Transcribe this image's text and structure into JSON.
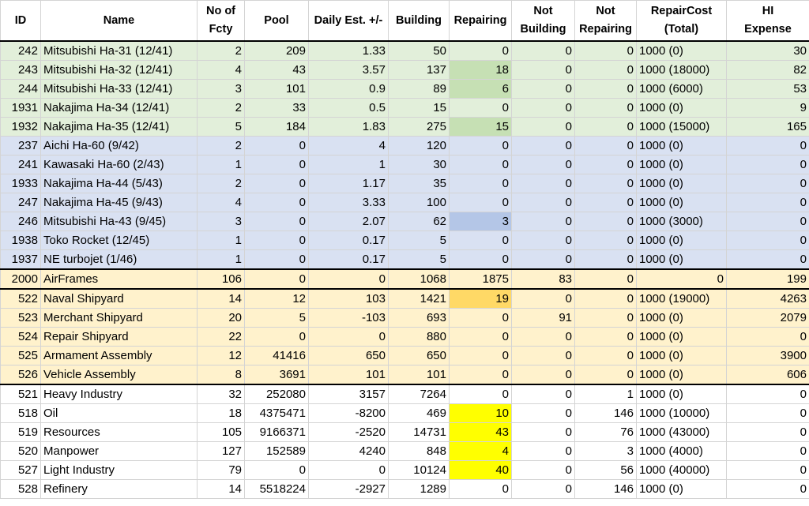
{
  "headers": [
    "ID",
    "Name",
    "No of\nFcty",
    "Pool",
    "Daily Est. +/-",
    "Building",
    "Repairing",
    "Not\nBuilding",
    "Not\nRepairing",
    "RepairCost\n(Total)",
    "HI\nExpense"
  ],
  "rows": [
    {
      "group": "green",
      "cells": [
        "242",
        "Mitsubishi Ha-31  (12/41)",
        "2",
        "209",
        "1.33",
        "50",
        "0",
        "0",
        "0",
        "1000 (0)",
        "30"
      ]
    },
    {
      "group": "green",
      "hl": "green",
      "cells": [
        "243",
        "Mitsubishi Ha-32 (12/41)",
        "4",
        "43",
        "3.57",
        "137",
        "18",
        "0",
        "0",
        "1000 (18000)",
        "82"
      ]
    },
    {
      "group": "green",
      "hl": "green",
      "cells": [
        "244",
        "Mitsubishi Ha-33 (12/41)",
        "3",
        "101",
        "0.9",
        "89",
        "6",
        "0",
        "0",
        "1000 (6000)",
        "53"
      ]
    },
    {
      "group": "green",
      "cells": [
        "1931",
        "Nakajima Ha-34  (12/41)",
        "2",
        "33",
        "0.5",
        "15",
        "0",
        "0",
        "0",
        "1000 (0)",
        "9"
      ]
    },
    {
      "group": "green",
      "hl": "green",
      "cells": [
        "1932",
        "Nakajima Ha-35  (12/41)",
        "5",
        "184",
        "1.83",
        "275",
        "15",
        "0",
        "0",
        "1000 (15000)",
        "165"
      ]
    },
    {
      "group": "blue",
      "cells": [
        "237",
        "Aichi Ha-60  (9/42)",
        "2",
        "0",
        "4",
        "120",
        "0",
        "0",
        "0",
        "1000 (0)",
        "0"
      ]
    },
    {
      "group": "blue",
      "cells": [
        "241",
        "Kawasaki Ha-60  (2/43)",
        "1",
        "0",
        "1",
        "30",
        "0",
        "0",
        "0",
        "1000 (0)",
        "0"
      ]
    },
    {
      "group": "blue",
      "cells": [
        "1933",
        "Nakajima Ha-44 (5/43)",
        "2",
        "0",
        "1.17",
        "35",
        "0",
        "0",
        "0",
        "1000 (0)",
        "0"
      ]
    },
    {
      "group": "blue",
      "cells": [
        "247",
        "Nakajima Ha-45  (9/43)",
        "4",
        "0",
        "3.33",
        "100",
        "0",
        "0",
        "0",
        "1000 (0)",
        "0"
      ]
    },
    {
      "group": "blue",
      "hl": "blue",
      "cells": [
        "246",
        "Mitsubishi Ha-43 (9/45)",
        "3",
        "0",
        "2.07",
        "62",
        "3",
        "0",
        "0",
        "1000 (3000)",
        "0"
      ]
    },
    {
      "group": "blue",
      "cells": [
        "1938",
        "Toko Rocket  (12/45)",
        "1",
        "0",
        "0.17",
        "5",
        "0",
        "0",
        "0",
        "1000 (0)",
        "0"
      ]
    },
    {
      "group": "blue",
      "cells": [
        "1937",
        "NE turbojet  (1/46)",
        "1",
        "0",
        "0.17",
        "5",
        "0",
        "0",
        "0",
        "1000 (0)",
        "0"
      ]
    },
    {
      "group": "orange",
      "cells": [
        "2000",
        "AirFrames",
        "106",
        "0",
        "0",
        "1068",
        "1875",
        "83",
        "0",
        "0",
        "199"
      ]
    },
    {
      "group": "orange",
      "hl": "gold",
      "cells": [
        "522",
        "Naval Shipyard",
        "14",
        "12",
        "103",
        "1421",
        "19",
        "0",
        "0",
        "1000 (19000)",
        "4263"
      ]
    },
    {
      "group": "orange",
      "cells": [
        "523",
        "Merchant Shipyard",
        "20",
        "5",
        "-103",
        "693",
        "0",
        "91",
        "0",
        "1000 (0)",
        "2079"
      ]
    },
    {
      "group": "orange",
      "cells": [
        "524",
        "Repair Shipyard",
        "22",
        "0",
        "0",
        "880",
        "0",
        "0",
        "0",
        "1000 (0)",
        "0"
      ]
    },
    {
      "group": "orange",
      "cells": [
        "525",
        "Armament Assembly",
        "12",
        "41416",
        "650",
        "650",
        "0",
        "0",
        "0",
        "1000 (0)",
        "3900"
      ]
    },
    {
      "group": "orange",
      "cells": [
        "526",
        "Vehicle Assembly",
        "8",
        "3691",
        "101",
        "101",
        "0",
        "0",
        "0",
        "1000 (0)",
        "606"
      ]
    },
    {
      "group": "white",
      "cells": [
        "521",
        "Heavy Industry",
        "32",
        "252080",
        "3157",
        "7264",
        "0",
        "0",
        "1",
        "1000 (0)",
        "0"
      ]
    },
    {
      "group": "white",
      "hl": "yellow",
      "cells": [
        "518",
        "Oil",
        "18",
        "4375471",
        "-8200",
        "469",
        "10",
        "0",
        "146",
        "1000 (10000)",
        "0"
      ]
    },
    {
      "group": "white",
      "hl": "yellow",
      "cells": [
        "519",
        "Resources",
        "105",
        "9166371",
        "-2520",
        "14731",
        "43",
        "0",
        "76",
        "1000 (43000)",
        "0"
      ]
    },
    {
      "group": "white",
      "hl": "yellow",
      "cells": [
        "520",
        "Manpower",
        "127",
        "152589",
        "4240",
        "848",
        "4",
        "0",
        "3",
        "1000 (4000)",
        "0"
      ]
    },
    {
      "group": "white",
      "hl": "yellow",
      "cells": [
        "527",
        "Light Industry",
        "79",
        "0",
        "0",
        "10124",
        "40",
        "0",
        "56",
        "1000 (40000)",
        "0"
      ]
    },
    {
      "group": "white",
      "cells": [
        "528",
        "Refinery",
        "14",
        "5518224",
        "-2927",
        "1289",
        "0",
        "0",
        "146",
        "1000 (0)",
        "0"
      ]
    }
  ]
}
